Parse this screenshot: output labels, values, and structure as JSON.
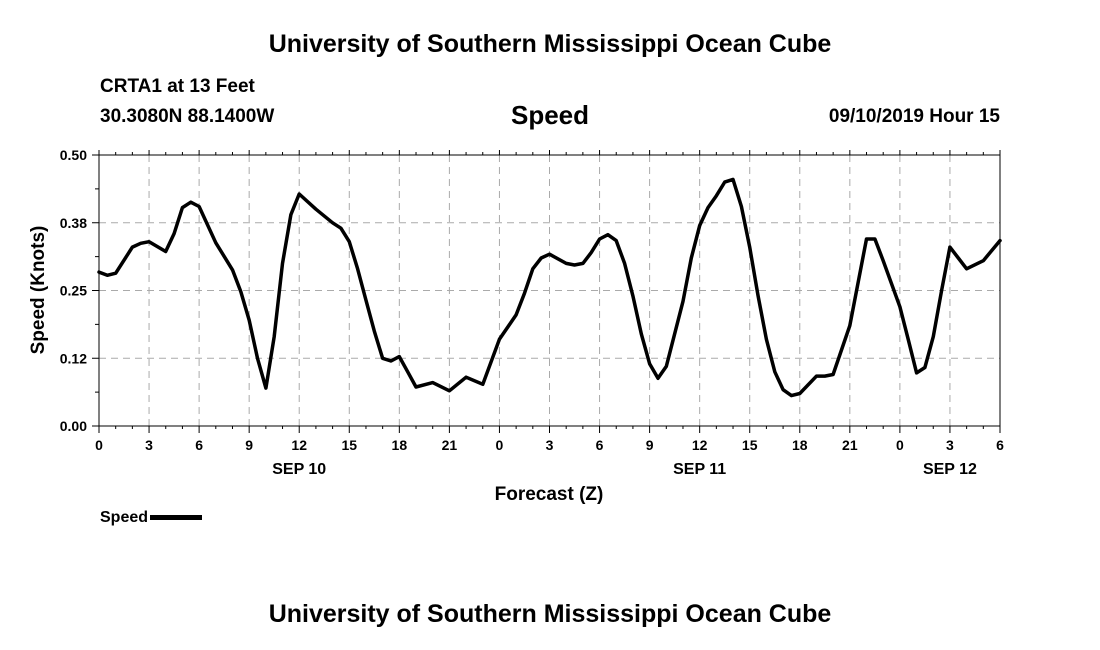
{
  "header": {
    "title": "University of Southern Mississippi Ocean Cube",
    "station": "CRTA1 at 13 Feet",
    "coords": "30.3080N 88.1400W",
    "variable": "Speed",
    "datetime": "09/10/2019 Hour 15"
  },
  "footer": {
    "title": "University of Southern Mississippi Ocean Cube"
  },
  "legend": {
    "label": "Speed"
  },
  "chart_data": {
    "type": "line",
    "title": "Speed",
    "xlabel": "Forecast (Z)",
    "ylabel": "Speed (Knots)",
    "ylim": [
      0,
      0.5
    ],
    "xlim": [
      0,
      54
    ],
    "yticks": [
      0,
      0.125,
      0.25,
      0.375,
      0.5
    ],
    "ytick_labels": [
      "0.00",
      "0.12",
      "0.25",
      "0.38",
      "0.50"
    ],
    "xticks": [
      0,
      3,
      6,
      9,
      12,
      15,
      18,
      21,
      24,
      27,
      30,
      33,
      36,
      39,
      42,
      45,
      48,
      51,
      54
    ],
    "xtick_labels": [
      "0",
      "3",
      "6",
      "9",
      "12",
      "15",
      "18",
      "21",
      "0",
      "3",
      "6",
      "9",
      "12",
      "15",
      "18",
      "21",
      "0",
      "3",
      "6"
    ],
    "date_labels": [
      {
        "x": 12,
        "label": "SEP 10"
      },
      {
        "x": 36,
        "label": "SEP 11"
      },
      {
        "x": 51,
        "label": "SEP 12"
      }
    ],
    "grid": true,
    "series": [
      {
        "name": "Speed",
        "color": "#000000",
        "x": [
          0,
          0.5,
          1,
          2,
          2.5,
          3,
          4,
          4.5,
          5,
          5.5,
          6,
          7,
          8,
          8.5,
          9,
          9.5,
          10,
          10.5,
          11,
          11.5,
          12,
          13,
          14,
          14.5,
          15,
          15.5,
          16,
          16.5,
          17,
          17.5,
          18,
          18.5,
          19,
          20,
          21,
          22,
          23,
          24,
          25,
          25.5,
          26,
          26.5,
          27,
          28,
          28.5,
          29,
          29.5,
          30,
          30.5,
          31,
          31.5,
          32,
          32.5,
          33,
          33.5,
          34,
          35,
          35.5,
          36,
          36.5,
          37,
          37.5,
          38,
          38.5,
          39,
          39.5,
          40,
          40.5,
          41,
          41.5,
          42,
          43,
          43.5,
          44,
          45,
          46,
          46.5,
          47,
          48,
          48.5,
          49,
          49.5,
          50,
          50.5,
          51,
          51.5,
          52,
          53,
          54
        ],
        "values": [
          0.284,
          0.278,
          0.282,
          0.33,
          0.337,
          0.34,
          0.322,
          0.355,
          0.403,
          0.413,
          0.405,
          0.338,
          0.288,
          0.248,
          0.195,
          0.125,
          0.07,
          0.165,
          0.3,
          0.39,
          0.428,
          0.4,
          0.375,
          0.365,
          0.34,
          0.29,
          0.232,
          0.175,
          0.125,
          0.12,
          0.128,
          0.1,
          0.072,
          0.08,
          0.065,
          0.09,
          0.077,
          0.16,
          0.205,
          0.245,
          0.29,
          0.31,
          0.317,
          0.3,
          0.297,
          0.3,
          0.32,
          0.345,
          0.353,
          0.342,
          0.3,
          0.24,
          0.17,
          0.115,
          0.088,
          0.11,
          0.23,
          0.31,
          0.37,
          0.403,
          0.425,
          0.45,
          0.455,
          0.405,
          0.33,
          0.24,
          0.16,
          0.1,
          0.067,
          0.056,
          0.06,
          0.092,
          0.092,
          0.095,
          0.185,
          0.345,
          0.345,
          0.305,
          0.22,
          0.16,
          0.098,
          0.108,
          0.165,
          0.25,
          0.33,
          0.31,
          0.29,
          0.305,
          0.342
        ]
      }
    ]
  }
}
